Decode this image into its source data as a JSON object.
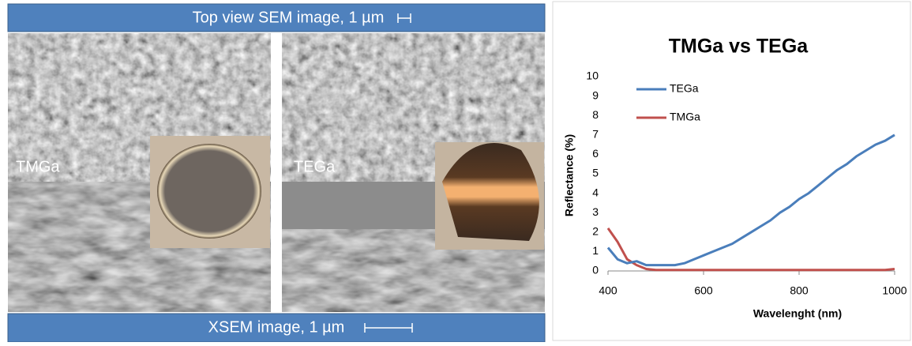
{
  "figure": {
    "top_banner": "Top view SEM image, 1 µm",
    "bottom_banner": "XSEM image, 1 µm",
    "panels": [
      {
        "label": "TMGa"
      },
      {
        "label": "TEGa"
      }
    ]
  },
  "chart_data": {
    "type": "line",
    "title": "TMGa vs TEGa",
    "x_label": "Wavelenght (nm)",
    "y_label": "Reflectance (%)",
    "x": [
      400,
      420,
      440,
      460,
      480,
      500,
      520,
      540,
      560,
      580,
      600,
      620,
      640,
      660,
      680,
      700,
      720,
      740,
      760,
      780,
      800,
      820,
      840,
      860,
      880,
      900,
      920,
      940,
      960,
      980,
      1000
    ],
    "series": [
      {
        "name": "TEGa",
        "color": "#4a7ebb",
        "values": [
          1.2,
          0.6,
          0.4,
          0.5,
          0.3,
          0.3,
          0.3,
          0.3,
          0.4,
          0.6,
          0.8,
          1.0,
          1.2,
          1.4,
          1.7,
          2.0,
          2.3,
          2.6,
          3.0,
          3.3,
          3.7,
          4.0,
          4.4,
          4.8,
          5.2,
          5.5,
          5.9,
          6.2,
          6.5,
          6.7,
          7.0
        ]
      },
      {
        "name": "TMGa",
        "color": "#c0504d",
        "values": [
          2.2,
          1.5,
          0.6,
          0.3,
          0.1,
          0.05,
          0.05,
          0.05,
          0.05,
          0.05,
          0.05,
          0.05,
          0.05,
          0.05,
          0.05,
          0.05,
          0.05,
          0.05,
          0.05,
          0.05,
          0.05,
          0.05,
          0.05,
          0.05,
          0.05,
          0.05,
          0.05,
          0.05,
          0.05,
          0.05,
          0.1
        ]
      }
    ],
    "xlim": [
      400,
      1000
    ],
    "xticks": [
      400,
      600,
      800,
      1000
    ],
    "ylim": [
      0,
      10
    ],
    "yticks": [
      0,
      1,
      2,
      3,
      4,
      5,
      6,
      7,
      8,
      9,
      10
    ],
    "grid": false,
    "legend": "upper-left"
  }
}
